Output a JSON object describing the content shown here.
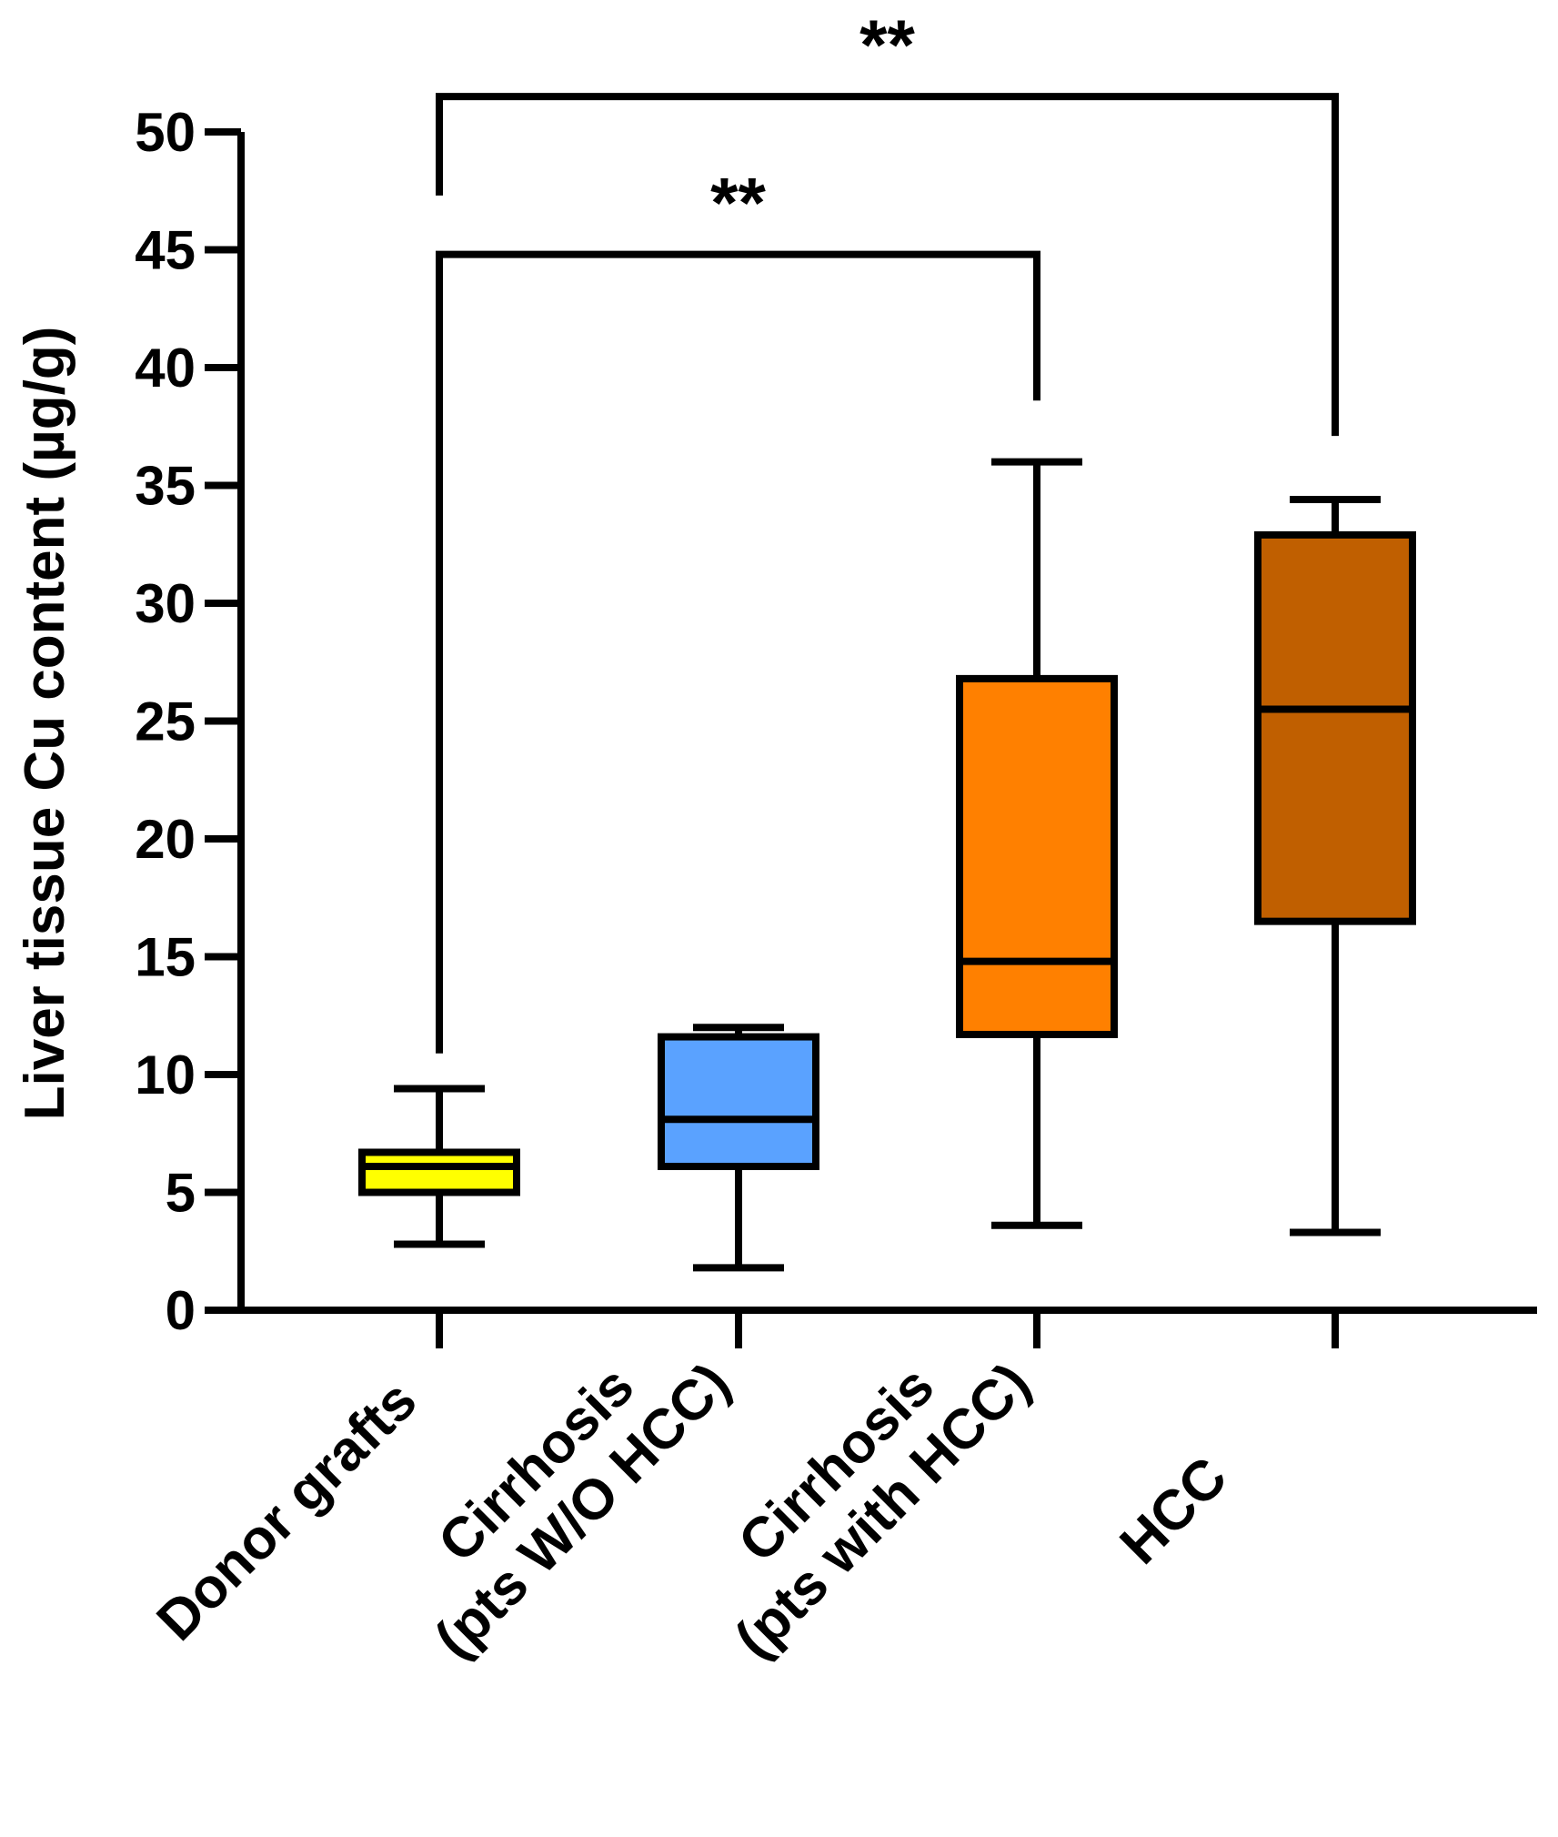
{
  "chart_data": {
    "type": "box",
    "ylabel": "Liver tissue Cu content (µg/g)",
    "ylim": [
      0,
      50
    ],
    "yticks": [
      0,
      5,
      10,
      15,
      20,
      25,
      30,
      35,
      40,
      45,
      50
    ],
    "grid": false,
    "categories": [
      [
        "Donor grafts"
      ],
      [
        "Cirrhosis",
        "(pts W/O HCC)"
      ],
      [
        "Cirrhosis",
        "(pts with HCC)"
      ],
      [
        "HCC"
      ]
    ],
    "boxes": [
      {
        "name": "Donor grafts",
        "color": "#FFFF00",
        "min": 2.8,
        "q1": 5.0,
        "median": 6.1,
        "q3": 6.7,
        "max": 9.4
      },
      {
        "name": "Cirrhosis (pts W/O HCC)",
        "color": "#5AA2FF",
        "min": 1.8,
        "q1": 6.1,
        "median": 8.1,
        "q3": 11.6,
        "max": 12.0
      },
      {
        "name": "Cirrhosis (pts with HCC)",
        "color": "#FF8000",
        "min": 3.6,
        "q1": 11.7,
        "median": 14.8,
        "q3": 26.8,
        "max": 36.0
      },
      {
        "name": "HCC",
        "color": "#C05F00",
        "min": 3.3,
        "q1": 16.5,
        "median": 25.5,
        "q3": 32.9,
        "max": 34.4
      }
    ],
    "significance": [
      {
        "from": 0,
        "to": 2,
        "label": "**",
        "bar_y": 44.8,
        "left_end": 10.9,
        "right_end": 38.6
      },
      {
        "from": 0,
        "to": 3,
        "label": "**",
        "bar_y": 51.5,
        "left_end": 47.3,
        "right_end": 37.1
      }
    ]
  }
}
